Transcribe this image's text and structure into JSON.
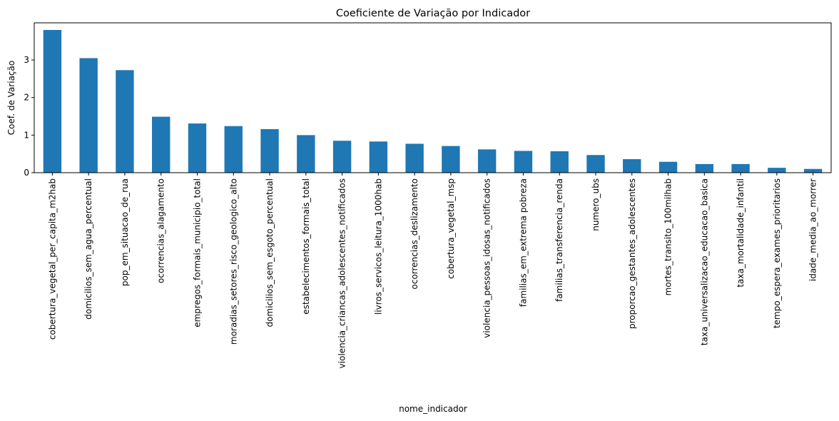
{
  "chart_data": {
    "type": "bar",
    "title": "Coeficiente de Variação por Indicador",
    "xlabel": "nome_indicador",
    "ylabel": "Coef. de Variação",
    "ylim": [
      0,
      3.99
    ],
    "yticks": [
      0,
      1,
      2,
      3
    ],
    "grid": false,
    "bar_color": "#1f77b4",
    "categories": [
      "cobertura_vegetal_per_capita_m2hab",
      "domicilios_sem_agua_percentual",
      "pop_em_situacao_de_rua",
      "ocorrencias_alagamento",
      "empregos_formais_municipio_total",
      "moradias_setores_risco_geologico_alto",
      "domicilios_sem_esgoto_percentual",
      "estabelecimentos_formais_total",
      "violencia_criancas_adolescentes_notificados",
      "livros_servicos_leitura_1000hab",
      "ocorrencias_deslizamento",
      "cobertura_vegetal_msp",
      "violencia_pessoas_idosas_notificados",
      "familias_em_extrema pobreza",
      "familias_transferencia_renda",
      "numero_ubs",
      "proporcao_gestantes_adolescentes",
      "mortes_transito_100milhab",
      "taxa_universalizacao_educacao_basica",
      "taxa_mortalidade_infantil",
      "tempo_espera_exames_prioritarios",
      "idade_media_ao_morrer"
    ],
    "values": [
      3.8,
      3.05,
      2.73,
      1.49,
      1.31,
      1.24,
      1.16,
      1.0,
      0.85,
      0.83,
      0.77,
      0.71,
      0.62,
      0.58,
      0.57,
      0.47,
      0.36,
      0.29,
      0.23,
      0.23,
      0.13,
      0.1
    ]
  }
}
